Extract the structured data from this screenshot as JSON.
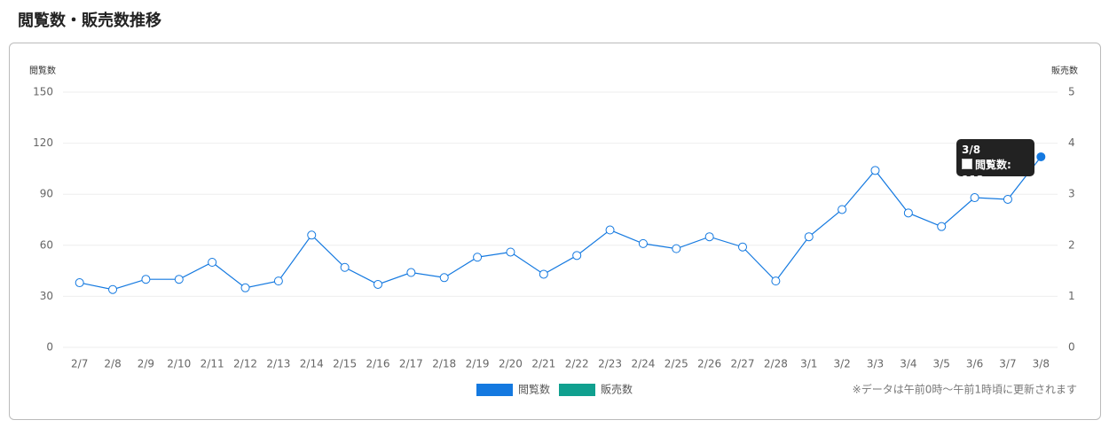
{
  "page_title": "閲覧数・販売数推移",
  "chart_data": {
    "type": "line",
    "y_label": "閲覧数",
    "y2_label": "販売数",
    "categories": [
      "2/7",
      "2/8",
      "2/9",
      "2/10",
      "2/11",
      "2/12",
      "2/13",
      "2/14",
      "2/15",
      "2/16",
      "2/17",
      "2/18",
      "2/19",
      "2/20",
      "2/21",
      "2/22",
      "2/23",
      "2/24",
      "2/25",
      "2/26",
      "2/27",
      "2/28",
      "3/1",
      "3/2",
      "3/3",
      "3/4",
      "3/5",
      "3/6",
      "3/7",
      "3/8"
    ],
    "series": [
      {
        "name": "閲覧数",
        "color": "#1479e0",
        "values": [
          38,
          34,
          40,
          40,
          50,
          35,
          39,
          66,
          47,
          37,
          44,
          41,
          53,
          56,
          43,
          54,
          69,
          61,
          58,
          65,
          59,
          39,
          65,
          81,
          104,
          79,
          71,
          88,
          87,
          112
        ]
      },
      {
        "name": "販売数",
        "color": "#10a08f",
        "axis": "y2",
        "values": [
          null,
          null,
          null,
          null,
          null,
          null,
          null,
          null,
          null,
          null,
          null,
          null,
          null,
          null,
          null,
          null,
          null,
          null,
          null,
          null,
          null,
          null,
          null,
          null,
          null,
          null,
          null,
          null,
          null,
          null
        ]
      }
    ],
    "ylim": [
      0,
      150
    ],
    "yticks": [
      0,
      30,
      60,
      90,
      120,
      150
    ],
    "y2lim": [
      0,
      5
    ],
    "y2ticks": [
      0,
      1,
      2,
      3,
      4,
      5
    ],
    "grid": true,
    "legend": "bottom",
    "tooltip_index": 29,
    "note": "※データは午前0時～午前1時頃に更新されます"
  }
}
